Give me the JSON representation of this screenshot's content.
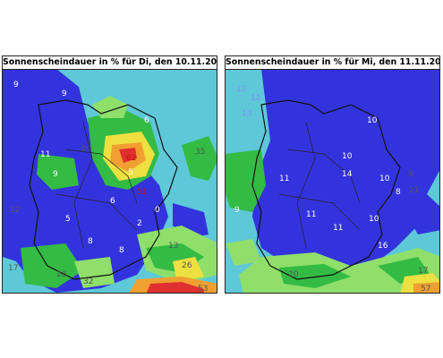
{
  "panels": [
    {
      "title": "Sonnenscheindauer in % für Di, den 10.11.2020",
      "labels": [
        "9",
        "9",
        "11",
        "6",
        "9",
        "62",
        "51",
        "5",
        "6",
        "5",
        "2",
        "8",
        "8",
        "20",
        "0",
        "17",
        "28",
        "32",
        "13",
        "35",
        "26",
        "53",
        "12"
      ]
    },
    {
      "title": "Sonnenscheindauer in % für Mi, den 11.11.2020",
      "labels": [
        "12",
        "13",
        "12",
        "10",
        "10",
        "10",
        "11",
        "11",
        "11",
        "10",
        "16",
        "14",
        "8",
        "9",
        "20",
        "6",
        "17",
        "57",
        "21"
      ]
    }
  ],
  "colors": {
    "deep_blue": "#3333dd",
    "cyan": "#5ec8d8",
    "light_green": "#8fdf6a",
    "green": "#33bb44",
    "yellow": "#eee040",
    "orange": "#f0a030",
    "red": "#e03030"
  }
}
